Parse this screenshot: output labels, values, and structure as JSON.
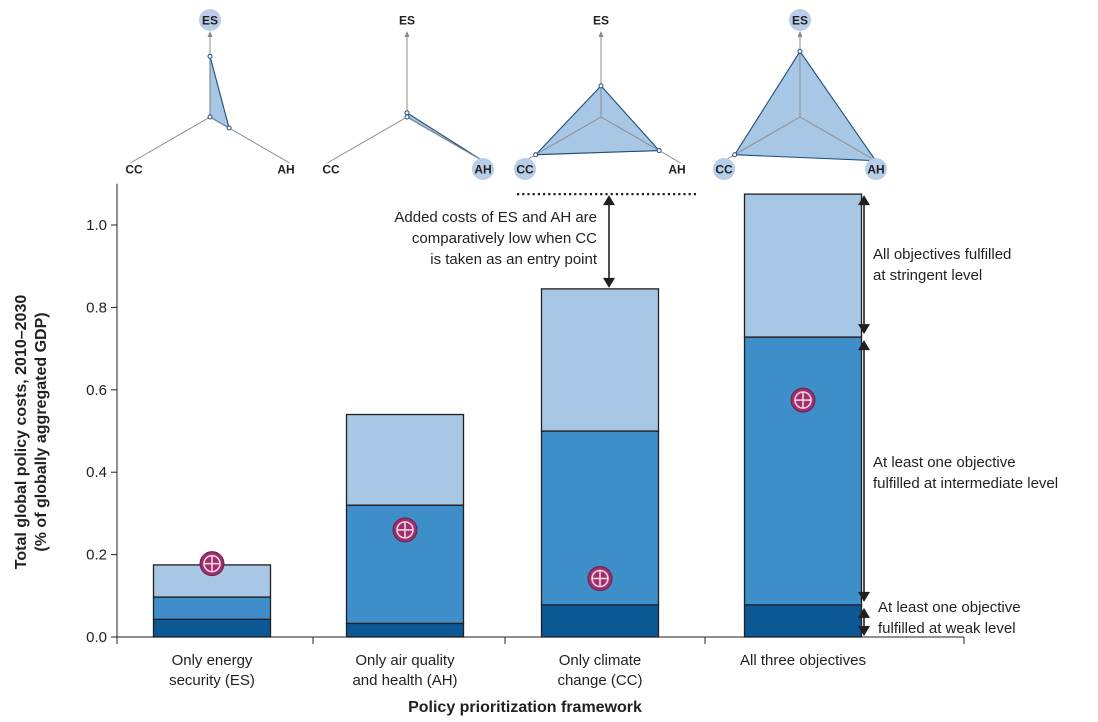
{
  "chart_data": {
    "type": "bar",
    "stacked": true,
    "categories": [
      [
        "Only energy",
        "security (ES)"
      ],
      [
        "Only air quality",
        "and health (AH)"
      ],
      [
        "Only climate",
        "change (CC)"
      ],
      [
        "All three objectives"
      ]
    ],
    "series": [
      {
        "name": "At least one objective fulfilled at weak level",
        "color": "#0b5894",
        "values": [
          0.043,
          0.033,
          0.078,
          0.078
        ]
      },
      {
        "name": "At least one objective fulfilled at intermediate level",
        "color": "#3d8ec9",
        "values": [
          0.054,
          0.287,
          0.422,
          0.65
        ]
      },
      {
        "name": "All objectives fulfilled at stringent level",
        "color": "#a8c7e4",
        "values": [
          0.078,
          0.22,
          0.345,
          0.347
        ]
      }
    ],
    "markers": [
      0.178,
      0.26,
      0.142,
      0.575
    ],
    "marker_color": "#9e2f6d",
    "ylim": [
      0,
      1.1
    ],
    "yticks": [
      "0.0",
      "0.2",
      "0.4",
      "0.6",
      "0.8",
      "1.0"
    ],
    "ylabel_line1": "Total global policy costs, 2010–2030",
    "ylabel_line2": "(% of globally aggregated GDP)",
    "xlabel": "Policy prioritization framework",
    "annotations": {
      "cc_entry": [
        "Added costs of ES and AH are",
        "comparatively low when CC",
        "is taken as an entry point"
      ],
      "stringent": [
        "All objectives fulfilled",
        "at stringent level"
      ],
      "intermediate": [
        "At least one objective",
        "fulfilled at intermediate level"
      ],
      "weak": [
        "At least one objective",
        "fulfilled at weak level"
      ]
    },
    "radar_axes": [
      "ES",
      "CC",
      "AH"
    ],
    "radar": [
      {
        "ES": 0.74,
        "CC": 0.0,
        "AH": 0.24,
        "highlight": [
          "ES"
        ]
      },
      {
        "ES": 0.05,
        "CC": 0.0,
        "AH": 0.95,
        "highlight": [
          "AH"
        ]
      },
      {
        "ES": 0.38,
        "CC": 0.82,
        "AH": 0.73,
        "highlight": [
          "CC"
        ]
      },
      {
        "ES": 0.8,
        "CC": 0.82,
        "AH": 0.95,
        "highlight": [
          "ES",
          "CC",
          "AH"
        ]
      }
    ],
    "colors": {
      "radar_fill": "#a8c7e4",
      "radar_highlight": "#b8cde8",
      "radar_stroke": "#1d4e7e",
      "axis": "#231f20",
      "spoke": "#8c8c8c"
    }
  }
}
